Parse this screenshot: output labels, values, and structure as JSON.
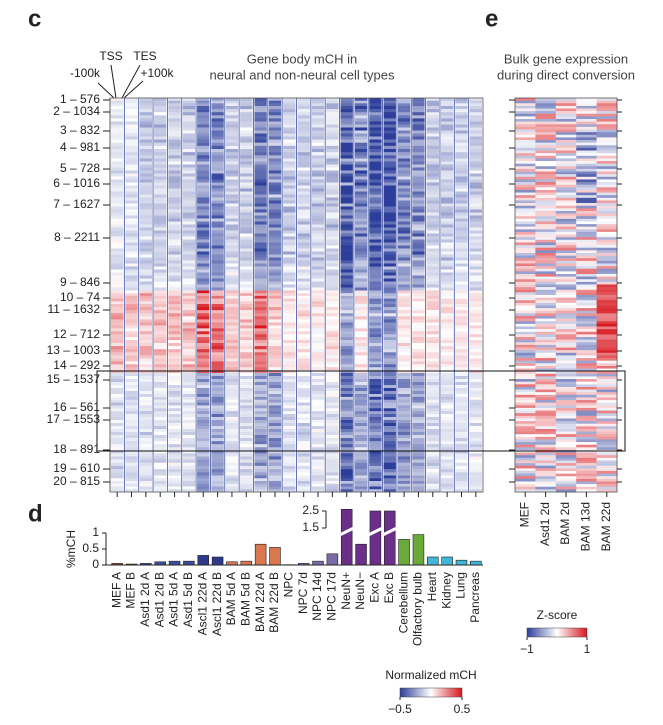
{
  "chart_data": [
    {
      "type": "heatmap",
      "panel": "c",
      "title": [
        "Gene body mCH in",
        "neural and non-neural cell types"
      ],
      "annotations": [
        "TSS",
        "TES",
        "-100k",
        "+100k"
      ],
      "rows": [
        "1 – 576",
        "2 – 1034",
        "3 – 832",
        "4 – 981",
        "5 – 728",
        "6 – 1016",
        "7 – 1627",
        "8 – 2211",
        "9 – 846",
        "10 – 74",
        "11 – 1632",
        "12 – 712",
        "13 – 1003",
        "14 – 292",
        "15 – 1537",
        "16 – 561",
        "17 – 1553",
        "18 – 891",
        "19 – 610",
        "20 – 815"
      ],
      "colorbar_label": "Normalized mCH",
      "colorbar_lim": [
        -0.5,
        0.5
      ],
      "colorbar_ticks": [
        {
          "value": -0.5,
          "label": "−0.5"
        },
        0.5
      ]
    },
    {
      "type": "bar",
      "panel": "d",
      "ylabel": "%mCH",
      "categories": [
        "MEF A",
        "MEF B",
        "Asd1 2d A",
        "Asd1 2d B",
        "Asd1 5d A",
        "Asd1 5d B",
        "Ascl1 22d A",
        "Ascl1 22d B",
        "BAM 5d A",
        "BAM 5d B",
        "BAM 22d A",
        "BAM 22d B",
        "NPC",
        "NPC 7d",
        "NPC 14d",
        "NPC 17d",
        "NeuN+",
        "NeuN−",
        "Exc A",
        "Exc B",
        "Cerebellum",
        "Olfactory bulb",
        "Heart",
        "Kidney",
        "Lung",
        "Pancreas"
      ],
      "values": [
        0.05,
        0.03,
        0.05,
        0.1,
        0.12,
        0.12,
        0.3,
        0.25,
        0.1,
        0.12,
        0.65,
        0.55,
        0.01,
        0.05,
        0.12,
        0.35,
        2.6,
        0.65,
        2.5,
        2.5,
        0.8,
        0.95,
        0.25,
        0.25,
        0.15,
        0.12
      ],
      "colors": [
        "#b0403a",
        "#b0403a",
        "#3b4f9e",
        "#3b4f9e",
        "#3b4f9e",
        "#3b4f9e",
        "#2c3a8c",
        "#2c3a8c",
        "#d9774f",
        "#d9774f",
        "#d9774f",
        "#d9774f",
        "#7b6aa8",
        "#7b6aa8",
        "#7b6aa8",
        "#7b6aa8",
        "#6b2f8a",
        "#6b2f8a",
        "#6b2f8a",
        "#6b2f8a",
        "#6aaa3a",
        "#6aaa3a",
        "#41b6d9",
        "#41b6d9",
        "#41b6d9",
        "#41b6d9"
      ],
      "ylim": [
        0,
        2.7
      ],
      "yticks": [
        0,
        0.5,
        1,
        1.5,
        2.5
      ]
    },
    {
      "type": "heatmap",
      "panel": "e",
      "title": [
        "Bulk gene expression",
        "during direct conversion"
      ],
      "categories": [
        "MEF",
        "Asd1 2d",
        "BAM 2d",
        "BAM 13d",
        "BAM 22d"
      ],
      "colorbar_label": "Z-score",
      "colorbar_lim": [
        -1,
        1
      ],
      "colorbar_ticks": [
        {
          "value": -1,
          "label": "−1"
        },
        1
      ]
    }
  ]
}
